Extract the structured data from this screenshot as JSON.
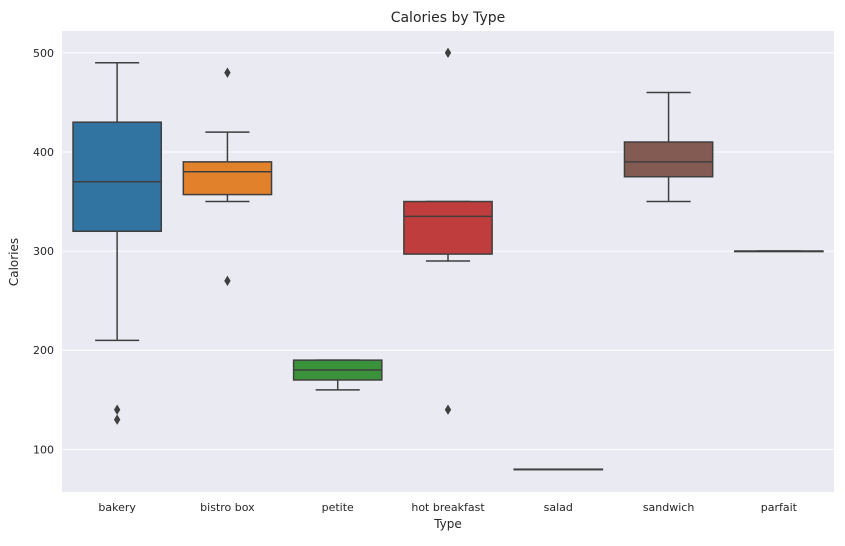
{
  "chart_data": {
    "type": "box",
    "title": "Calories by Type",
    "xlabel": "Type",
    "ylabel": "Calories",
    "ylim": [
      57,
      522
    ],
    "yticks": [
      100,
      200,
      300,
      400,
      500
    ],
    "grid": true,
    "categories": [
      "bakery",
      "bistro box",
      "petite",
      "hot breakfast",
      "salad",
      "sandwich",
      "parfait"
    ],
    "boxes": [
      {
        "category": "bakery",
        "color": "#3274a1",
        "whisker_low": 210,
        "q1": 320,
        "median": 370,
        "q3": 430,
        "whisker_high": 490,
        "outliers": [
          140,
          130
        ]
      },
      {
        "category": "bistro box",
        "color": "#e1812c",
        "whisker_low": 350,
        "q1": 357,
        "median": 380,
        "q3": 390,
        "whisker_high": 420,
        "outliers": [
          480,
          270
        ]
      },
      {
        "category": "petite",
        "color": "#3a923a",
        "whisker_low": 160,
        "q1": 170,
        "median": 180,
        "q3": 190,
        "whisker_high": 190,
        "outliers": []
      },
      {
        "category": "hot breakfast",
        "color": "#c03d3e",
        "whisker_low": 290,
        "q1": 297,
        "median": 335,
        "q3": 350,
        "whisker_high": 350,
        "outliers": [
          500,
          140
        ]
      },
      {
        "category": "salad",
        "color": "#9372b2",
        "whisker_low": 80,
        "q1": 80,
        "median": 80,
        "q3": 80,
        "whisker_high": 80,
        "outliers": []
      },
      {
        "category": "sandwich",
        "color": "#845b53",
        "whisker_low": 350,
        "q1": 375,
        "median": 390,
        "q3": 410,
        "whisker_high": 460,
        "outliers": []
      },
      {
        "category": "parfait",
        "color": "#d684bd",
        "whisker_low": 300,
        "q1": 300,
        "median": 300,
        "q3": 300,
        "whisker_high": 300,
        "outliers": []
      }
    ]
  }
}
